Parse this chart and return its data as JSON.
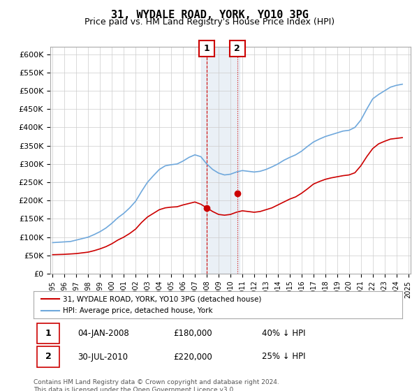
{
  "title": "31, WYDALE ROAD, YORK, YO10 3PG",
  "subtitle": "Price paid vs. HM Land Registry's House Price Index (HPI)",
  "ylabel": "",
  "ylim": [
    0,
    620000
  ],
  "yticks": [
    0,
    50000,
    100000,
    150000,
    200000,
    250000,
    300000,
    350000,
    400000,
    450000,
    500000,
    550000,
    600000
  ],
  "ytick_labels": [
    "£0",
    "£50K",
    "£100K",
    "£150K",
    "£200K",
    "£250K",
    "£300K",
    "£350K",
    "£400K",
    "£450K",
    "£500K",
    "£550K",
    "£600K"
  ],
  "hpi_color": "#6fa8dc",
  "price_color": "#cc0000",
  "shaded_region_color": "#dce6f1",
  "annotation1_date": "04-JAN-2008",
  "annotation1_price": "£180,000",
  "annotation1_hpi": "40% ↓ HPI",
  "annotation2_date": "30-JUL-2010",
  "annotation2_price": "£220,000",
  "annotation2_hpi": "25% ↓ HPI",
  "footnote": "Contains HM Land Registry data © Crown copyright and database right 2024.\nThis data is licensed under the Open Government Licence v3.0.",
  "legend_line1": "31, WYDALE ROAD, YORK, YO10 3PG (detached house)",
  "legend_line2": "HPI: Average price, detached house, York",
  "background_color": "#ffffff",
  "grid_color": "#cccccc",
  "hpi_years": [
    1995,
    1995.5,
    1996,
    1996.5,
    1997,
    1997.5,
    1998,
    1998.5,
    1999,
    1999.5,
    2000,
    2000.5,
    2001,
    2001.5,
    2002,
    2002.5,
    2003,
    2003.5,
    2004,
    2004.5,
    2005,
    2005.5,
    2006,
    2006.5,
    2007,
    2007.5,
    2008,
    2008.5,
    2009,
    2009.5,
    2010,
    2010.5,
    2011,
    2011.5,
    2012,
    2012.5,
    2013,
    2013.5,
    2014,
    2014.5,
    2015,
    2015.5,
    2016,
    2016.5,
    2017,
    2017.5,
    2018,
    2018.5,
    2019,
    2019.5,
    2020,
    2020.5,
    2021,
    2021.5,
    2022,
    2022.5,
    2023,
    2023.5,
    2024,
    2024.5
  ],
  "hpi_values": [
    85000,
    86000,
    87000,
    88000,
    92000,
    96000,
    100000,
    107000,
    115000,
    125000,
    138000,
    153000,
    165000,
    180000,
    198000,
    225000,
    250000,
    268000,
    285000,
    295000,
    298000,
    300000,
    308000,
    318000,
    325000,
    320000,
    300000,
    285000,
    275000,
    270000,
    272000,
    278000,
    282000,
    280000,
    278000,
    280000,
    285000,
    292000,
    300000,
    310000,
    318000,
    325000,
    335000,
    348000,
    360000,
    368000,
    375000,
    380000,
    385000,
    390000,
    392000,
    400000,
    420000,
    450000,
    478000,
    490000,
    500000,
    510000,
    515000,
    518000
  ],
  "price_years": [
    1995,
    1995.5,
    1996,
    1996.5,
    1997,
    1997.5,
    1998,
    1998.5,
    1999,
    1999.5,
    2000,
    2000.5,
    2001,
    2001.5,
    2002,
    2002.5,
    2003,
    2003.5,
    2004,
    2004.5,
    2005,
    2005.5,
    2006,
    2006.5,
    2007,
    2007.5,
    2008,
    2008.5,
    2009,
    2009.5,
    2010,
    2010.5,
    2011,
    2011.5,
    2012,
    2012.5,
    2013,
    2013.5,
    2014,
    2014.5,
    2015,
    2015.5,
    2016,
    2016.5,
    2017,
    2017.5,
    2018,
    2018.5,
    2019,
    2019.5,
    2020,
    2020.5,
    2021,
    2021.5,
    2022,
    2022.5,
    2023,
    2023.5,
    2024,
    2024.5
  ],
  "price_values": [
    52000,
    52500,
    53000,
    54000,
    55000,
    57000,
    59000,
    63000,
    68000,
    74000,
    82000,
    92000,
    100000,
    110000,
    122000,
    140000,
    155000,
    165000,
    175000,
    180000,
    182000,
    183000,
    188000,
    192000,
    196000,
    190000,
    180000,
    170000,
    162000,
    160000,
    162000,
    168000,
    172000,
    170000,
    168000,
    170000,
    175000,
    180000,
    188000,
    196000,
    204000,
    210000,
    220000,
    232000,
    245000,
    252000,
    258000,
    262000,
    265000,
    268000,
    270000,
    276000,
    295000,
    320000,
    342000,
    355000,
    362000,
    368000,
    370000,
    372000
  ],
  "sale1_year": 2008.01,
  "sale1_price": 180000,
  "sale2_year": 2010.58,
  "sale2_price": 220000,
  "shade_x1": 2007.5,
  "shade_x2": 2010.75,
  "xtick_years": [
    1995,
    1996,
    1997,
    1998,
    1999,
    2000,
    2001,
    2002,
    2003,
    2004,
    2005,
    2006,
    2007,
    2008,
    2009,
    2010,
    2011,
    2012,
    2013,
    2014,
    2015,
    2016,
    2017,
    2018,
    2019,
    2020,
    2021,
    2022,
    2023,
    2024,
    2025
  ]
}
